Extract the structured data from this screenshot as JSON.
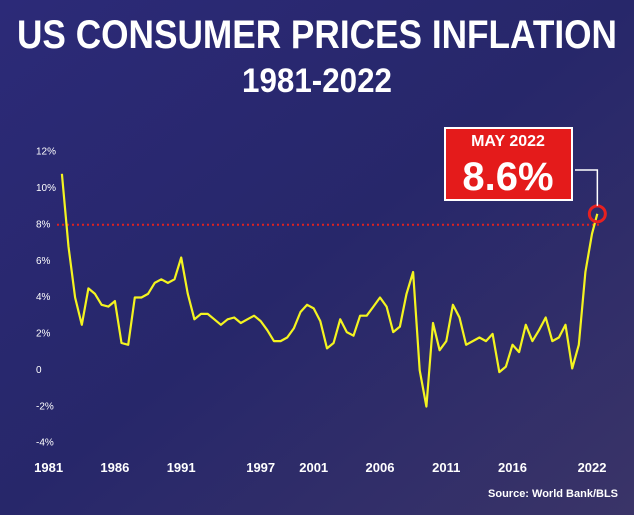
{
  "chart_data": {
    "type": "line",
    "title": "US CONSUMER PRICES INFLATION",
    "subtitle": "1981-2022",
    "source": "Source: World Bank/BLS",
    "color": "#f4f420",
    "x": [
      1982.0,
      1982.5,
      1983.0,
      1983.5,
      1984.0,
      1984.5,
      1985.0,
      1985.5,
      1986.0,
      1986.5,
      1987.0,
      1987.5,
      1988.0,
      1988.5,
      1989.0,
      1989.5,
      1990.0,
      1990.5,
      1991.0,
      1991.5,
      1992.0,
      1992.5,
      1993.0,
      1993.5,
      1994.0,
      1994.5,
      1995.0,
      1995.5,
      1996.0,
      1996.5,
      1997.0,
      1997.5,
      1998.0,
      1998.5,
      1999.0,
      1999.5,
      2000.0,
      2000.5,
      2001.0,
      2001.5,
      2002.0,
      2002.5,
      2003.0,
      2003.5,
      2004.0,
      2004.5,
      2005.0,
      2005.5,
      2006.0,
      2006.5,
      2007.0,
      2007.5,
      2008.0,
      2008.5,
      2009.0,
      2009.5,
      2010.0,
      2010.5,
      2011.0,
      2011.5,
      2012.0,
      2012.5,
      2013.0,
      2013.5,
      2014.0,
      2014.5,
      2015.0,
      2015.5,
      2016.0,
      2016.5,
      2017.0,
      2017.5,
      2018.0,
      2018.5,
      2019.0,
      2019.5,
      2020.0,
      2020.5,
      2021.0,
      2021.5,
      2022.0,
      2022.4
    ],
    "values": [
      10.8,
      6.8,
      4.0,
      2.5,
      4.5,
      4.2,
      3.6,
      3.5,
      3.8,
      1.5,
      1.4,
      4.0,
      4.0,
      4.2,
      4.8,
      5.0,
      4.8,
      5.0,
      6.2,
      4.2,
      2.8,
      3.1,
      3.1,
      2.8,
      2.5,
      2.8,
      2.9,
      2.6,
      2.8,
      3.0,
      2.7,
      2.2,
      1.6,
      1.6,
      1.8,
      2.3,
      3.2,
      3.6,
      3.4,
      2.7,
      1.2,
      1.5,
      2.8,
      2.1,
      1.9,
      3.0,
      3.0,
      3.5,
      4.0,
      3.5,
      2.1,
      2.4,
      4.2,
      5.4,
      0.0,
      -2.0,
      2.6,
      1.1,
      1.6,
      3.6,
      2.9,
      1.4,
      1.6,
      1.8,
      1.6,
      2.0,
      -0.1,
      0.2,
      1.4,
      1.0,
      2.5,
      1.6,
      2.2,
      2.9,
      1.6,
      1.8,
      2.5,
      0.1,
      1.4,
      5.4,
      7.5,
      8.6
    ],
    "xlim": [
      1980.5,
      2022.6
    ],
    "xticks": [
      1981,
      1986,
      1991,
      1997,
      2001,
      2006,
      2011,
      2016,
      2022
    ],
    "ylim": [
      -4,
      12
    ],
    "yticks": [
      {
        "value": 12,
        "label": "12%"
      },
      {
        "value": 10,
        "label": "10%"
      },
      {
        "value": 8,
        "label": "8%"
      },
      {
        "value": 6,
        "label": "6%"
      },
      {
        "value": 4,
        "label": "4%"
      },
      {
        "value": 2,
        "label": "2%"
      },
      0,
      {
        "value": -2,
        "label": "-2%"
      },
      {
        "value": -4,
        "label": "-4%"
      }
    ],
    "reference_line": 8,
    "highlight": {
      "label": "MAY 2022",
      "x": 2022.4,
      "value": 8.6,
      "value_label": "8.6%"
    }
  }
}
